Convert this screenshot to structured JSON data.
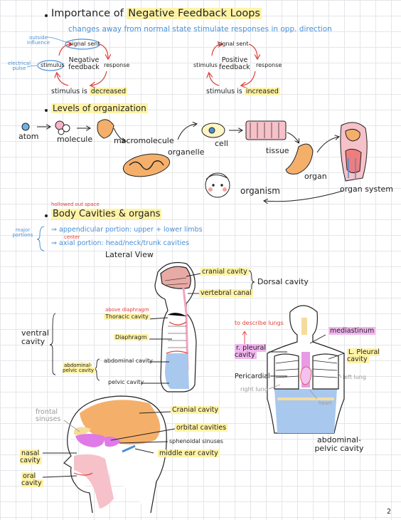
{
  "feedback": {
    "title_prefix": "Importance of",
    "title_highlight": "Negative Feedback Loops",
    "subtitle": "changes away from normal state stimulate responses in opp. direction",
    "negative": {
      "outside_influence": "outside influence",
      "electrical_pulse": "electrical pulse",
      "signal_sent": "signal sent",
      "stimulus": "stimulus",
      "center": "Negative feedback",
      "response": "response",
      "caption_prefix": "stimulus is",
      "caption_highlight": "decreased"
    },
    "positive": {
      "signal_sent": "signal sent",
      "stimulus": "stimulus",
      "center": "Positive feedback",
      "response": "response",
      "caption_prefix": "stimulus is",
      "caption_highlight": "increased"
    }
  },
  "levels": {
    "title": "Levels of organization",
    "items": [
      "atom",
      "molecule",
      "macromolecule",
      "organelle",
      "cell",
      "tissue",
      "organ",
      "organ system",
      "organism"
    ]
  },
  "cavities": {
    "note": "hollowed out space",
    "title": "Body Cavities & organs",
    "major_portions": "major portions",
    "portions": [
      {
        "arrow": "⇒",
        "text": "appendicular portion: upper + lower limbs"
      },
      {
        "arrow": "⇒",
        "text": "axial portion: head/neck/trunk cavities",
        "note": "center"
      }
    ],
    "lateral_view": "Lateral View",
    "cranial": "cranial cavity",
    "vertebral": "vertebral canal",
    "dorsal": "Dorsal cavity",
    "above_diaphragm": "above diaphragm",
    "thoracic": "Thoracic cavity",
    "diaphragm": "Diaphragm",
    "ventral": "ventral cavity",
    "abdominopelvic": "abdominal-pelvic cavity",
    "abdominal": "abdominal cavity",
    "pelvic": "pelvic cavity",
    "to_describe_lungs": "to describe lungs",
    "mediastinum": "mediastinum",
    "r_pleural": "r. pleural cavity",
    "l_pleural": "L. Pleural cavity",
    "pericardial": "Pericardial",
    "left_lung": "left lung",
    "right_lung": "right lung",
    "heart": "heart",
    "abd_pelvic_front": "abdominal-pelvic cavity"
  },
  "head": {
    "frontal": "frontal sinuses",
    "cranial": "Cranial cavity",
    "orbital": "orbital cavities",
    "sphenoidal": "sphenoidal sinuses",
    "middle_ear": "middle ear cavity",
    "nasal": "nasal cavity",
    "oral": "oral cavity"
  },
  "page_number": "2",
  "colors": {
    "highlight": "#fff3a6",
    "pink": "#f2b6ee",
    "blue_ink": "#4a8fd6",
    "red_ink": "#e0413a",
    "orange": "#f4b06a",
    "body_blue": "#a9c8ee"
  }
}
